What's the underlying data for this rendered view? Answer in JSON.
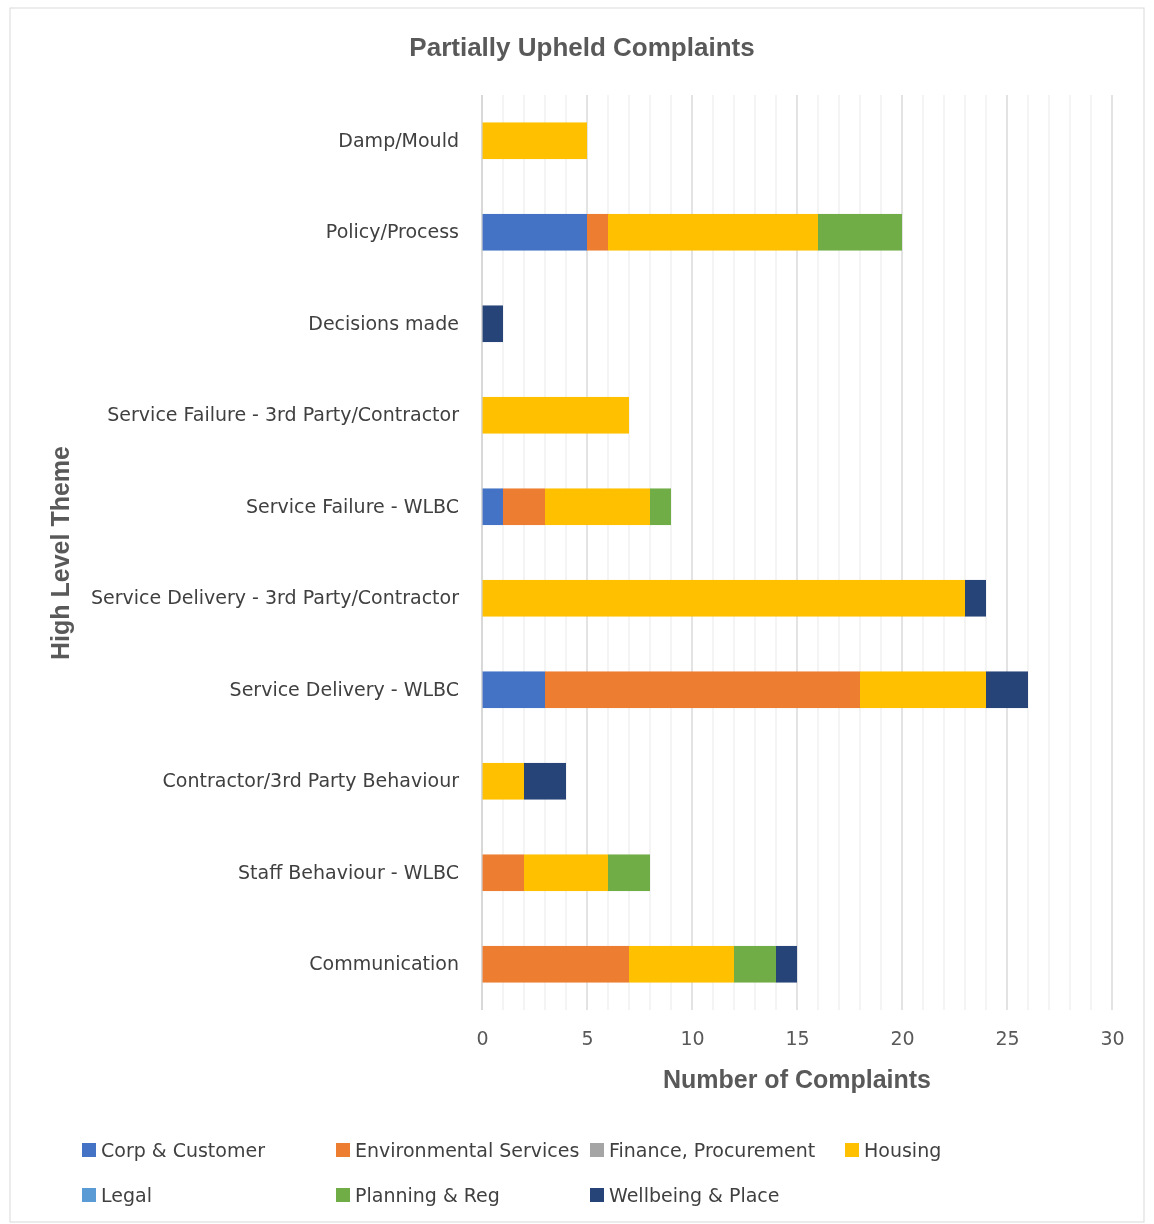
{
  "chart_data": {
    "type": "bar",
    "orientation": "horizontal",
    "stacked": true,
    "title": "Partially Upheld Complaints",
    "xlabel": "Number of Complaints",
    "ylabel": "High Level Theme",
    "categories": [
      "Damp/Mould",
      "Policy/Process",
      "Decisions made",
      "Service Failure - 3rd Party/Contractor",
      "Service Failure - WLBC",
      "Service Delivery - 3rd Party/Contractor",
      "Service Delivery - WLBC",
      "Contractor/3rd Party Behaviour",
      "Staff Behaviour - WLBC",
      "Communication"
    ],
    "series": [
      {
        "name": "Corp & Customer",
        "color": "#4472c4",
        "values": [
          null,
          5,
          null,
          null,
          1,
          null,
          3,
          null,
          null,
          null
        ]
      },
      {
        "name": "Environmental Services",
        "color": "#ed7d31",
        "values": [
          null,
          1,
          null,
          null,
          2,
          null,
          15,
          null,
          2,
          7
        ]
      },
      {
        "name": "Finance, Procurement",
        "color": "#a5a5a5",
        "values": [
          null,
          null,
          null,
          null,
          null,
          null,
          null,
          null,
          null,
          null
        ]
      },
      {
        "name": "Housing",
        "color": "#ffc000",
        "values": [
          5,
          10,
          null,
          7,
          5,
          23,
          6,
          2,
          4,
          5
        ]
      },
      {
        "name": "Legal",
        "color": "#5b9bd5",
        "values": [
          null,
          null,
          null,
          null,
          null,
          null,
          null,
          null,
          null,
          null
        ]
      },
      {
        "name": "Planning & Reg",
        "color": "#70ad47",
        "values": [
          null,
          4,
          null,
          null,
          1,
          null,
          null,
          null,
          2,
          2
        ]
      },
      {
        "name": "Wellbeing & Place",
        "color": "#264478",
        "values": [
          null,
          null,
          1,
          null,
          null,
          1,
          2,
          2,
          null,
          1
        ]
      }
    ],
    "xlim": [
      0,
      30
    ],
    "xticks": [
      0,
      {
        "value": 1,
        "label": null
      },
      {
        "value": 2,
        "label": null
      },
      {
        "value": 3,
        "label": null
      },
      {
        "value": 4,
        "label": null
      },
      5,
      {
        "value": 6,
        "label": null
      },
      {
        "value": 7,
        "label": null
      },
      {
        "value": 8,
        "label": null
      },
      {
        "value": 9,
        "label": null
      },
      10,
      {
        "value": 11,
        "label": null
      },
      {
        "value": 12,
        "label": null
      },
      {
        "value": 13,
        "label": null
      },
      {
        "value": 14,
        "label": null
      },
      15,
      {
        "value": 16,
        "label": null
      },
      {
        "value": 17,
        "label": null
      },
      {
        "value": 18,
        "label": null
      },
      {
        "value": 19,
        "label": null
      },
      20,
      {
        "value": 21,
        "label": null
      },
      {
        "value": 22,
        "label": null
      },
      {
        "value": 23,
        "label": null
      },
      {
        "value": 24,
        "label": null
      },
      25,
      {
        "value": 26,
        "label": null
      },
      {
        "value": 27,
        "label": null
      },
      {
        "value": 28,
        "label": null
      },
      {
        "value": 29,
        "label": null
      },
      30
    ],
    "grid": "x",
    "legend": "bottom"
  }
}
